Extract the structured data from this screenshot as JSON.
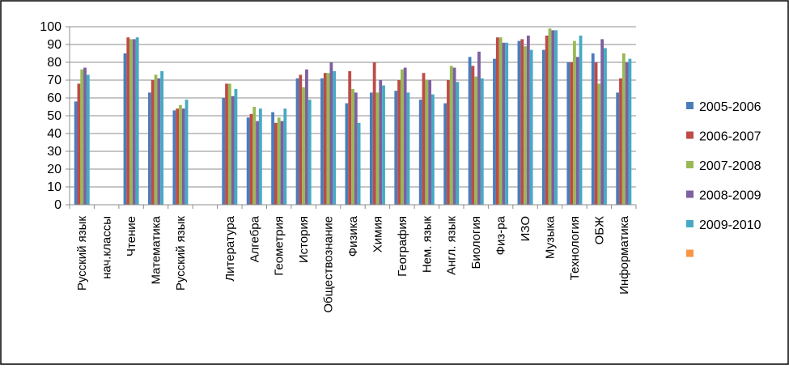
{
  "chart_data": {
    "type": "bar",
    "title": "",
    "xlabel": "",
    "ylabel": "",
    "ylim": [
      0,
      100
    ],
    "yticks": [
      0,
      10,
      20,
      30,
      40,
      50,
      60,
      70,
      80,
      90,
      100
    ],
    "grid": true,
    "legend_position": "right",
    "categories": [
      "Русский язык",
      "нач.классы",
      "Чтение",
      "Математика",
      "Русский язык",
      "",
      "Литература",
      "Алгебра",
      "Геометрия",
      "История",
      "Обществознание",
      "Физика",
      "Химия",
      "География",
      "Нем. язык",
      "Англ. язык",
      "Биология",
      "Физ-ра",
      "ИЗО",
      "Музыка",
      "Технология",
      "ОБЖ",
      "Информатика"
    ],
    "series": [
      {
        "name": "2005-2006",
        "color": "#4a7ebb",
        "values": [
          58,
          null,
          85,
          63,
          53,
          null,
          60,
          49,
          52,
          71,
          71,
          57,
          63,
          64,
          59,
          57,
          83,
          82,
          92,
          87,
          80,
          85,
          63
        ]
      },
      {
        "name": "2006-2007",
        "color": "#be4b48",
        "values": [
          68,
          null,
          94,
          70,
          54,
          null,
          68,
          51,
          46,
          73,
          74,
          75,
          80,
          70,
          74,
          70,
          78,
          94,
          93,
          95,
          80,
          80,
          71
        ]
      },
      {
        "name": "2007-2008",
        "color": "#98b954",
        "values": [
          76,
          null,
          93,
          73,
          56,
          null,
          68,
          55,
          49,
          66,
          74,
          65,
          63,
          76,
          70,
          78,
          72,
          94,
          89,
          99,
          92,
          68,
          85
        ]
      },
      {
        "name": "2008-2009",
        "color": "#7d60a0",
        "values": [
          77,
          null,
          93,
          71,
          54,
          null,
          61,
          47,
          47,
          76,
          80,
          63,
          70,
          77,
          70,
          77,
          86,
          91,
          95,
          98,
          83,
          93,
          80
        ]
      },
      {
        "name": "2009-2010",
        "color": "#46aac5",
        "values": [
          73,
          null,
          94,
          75,
          59,
          null,
          65,
          54,
          54,
          59,
          75,
          46,
          67,
          63,
          62,
          69,
          71,
          91,
          87,
          98,
          95,
          88,
          82
        ]
      },
      {
        "name": "",
        "color": "#f79646",
        "values": [
          null,
          null,
          null,
          null,
          null,
          null,
          null,
          null,
          null,
          null,
          null,
          null,
          null,
          null,
          null,
          null,
          null,
          null,
          null,
          null,
          null,
          null,
          null
        ]
      }
    ]
  }
}
